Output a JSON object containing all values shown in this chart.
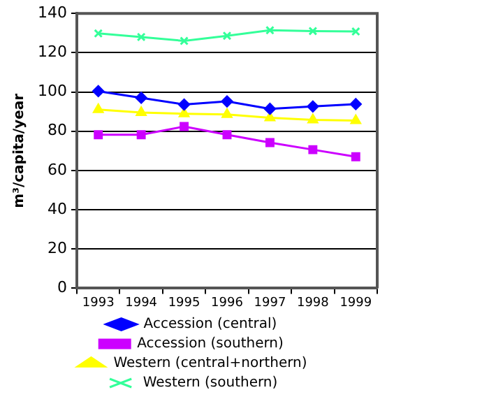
{
  "chart_data": {
    "type": "line",
    "ylabel": "m³/capita/year",
    "categories": [
      "1993",
      "1994",
      "1995",
      "1996",
      "1997",
      "1998",
      "1999"
    ],
    "series": [
      {
        "name": "Accession (central)",
        "color": "#0000ff",
        "marker": "diamond",
        "values": [
          100.4,
          97,
          93.6,
          95.2,
          91.4,
          92.6,
          93.8
        ]
      },
      {
        "name": "Accession (southern)",
        "color": "#cc00ff",
        "marker": "square",
        "values": [
          78.2,
          78.2,
          82.4,
          78.2,
          74.2,
          70.6,
          67
        ]
      },
      {
        "name": "Western (central+northern)",
        "color": "#ffff00",
        "marker": "triangle",
        "values": [
          91,
          89.5,
          88.9,
          88.5,
          86.8,
          85.8,
          85.4
        ]
      },
      {
        "name": "Western (southern)",
        "color": "#33ff99",
        "marker": "cross",
        "values": [
          129.8,
          128,
          126,
          128.6,
          131.4,
          131,
          130.8
        ]
      }
    ],
    "ylim": [
      0,
      140
    ],
    "yticks": [
      0,
      20,
      40,
      60,
      80,
      100,
      120,
      140
    ],
    "grid": "y",
    "legend": "bottom",
    "line_style": "solid"
  }
}
